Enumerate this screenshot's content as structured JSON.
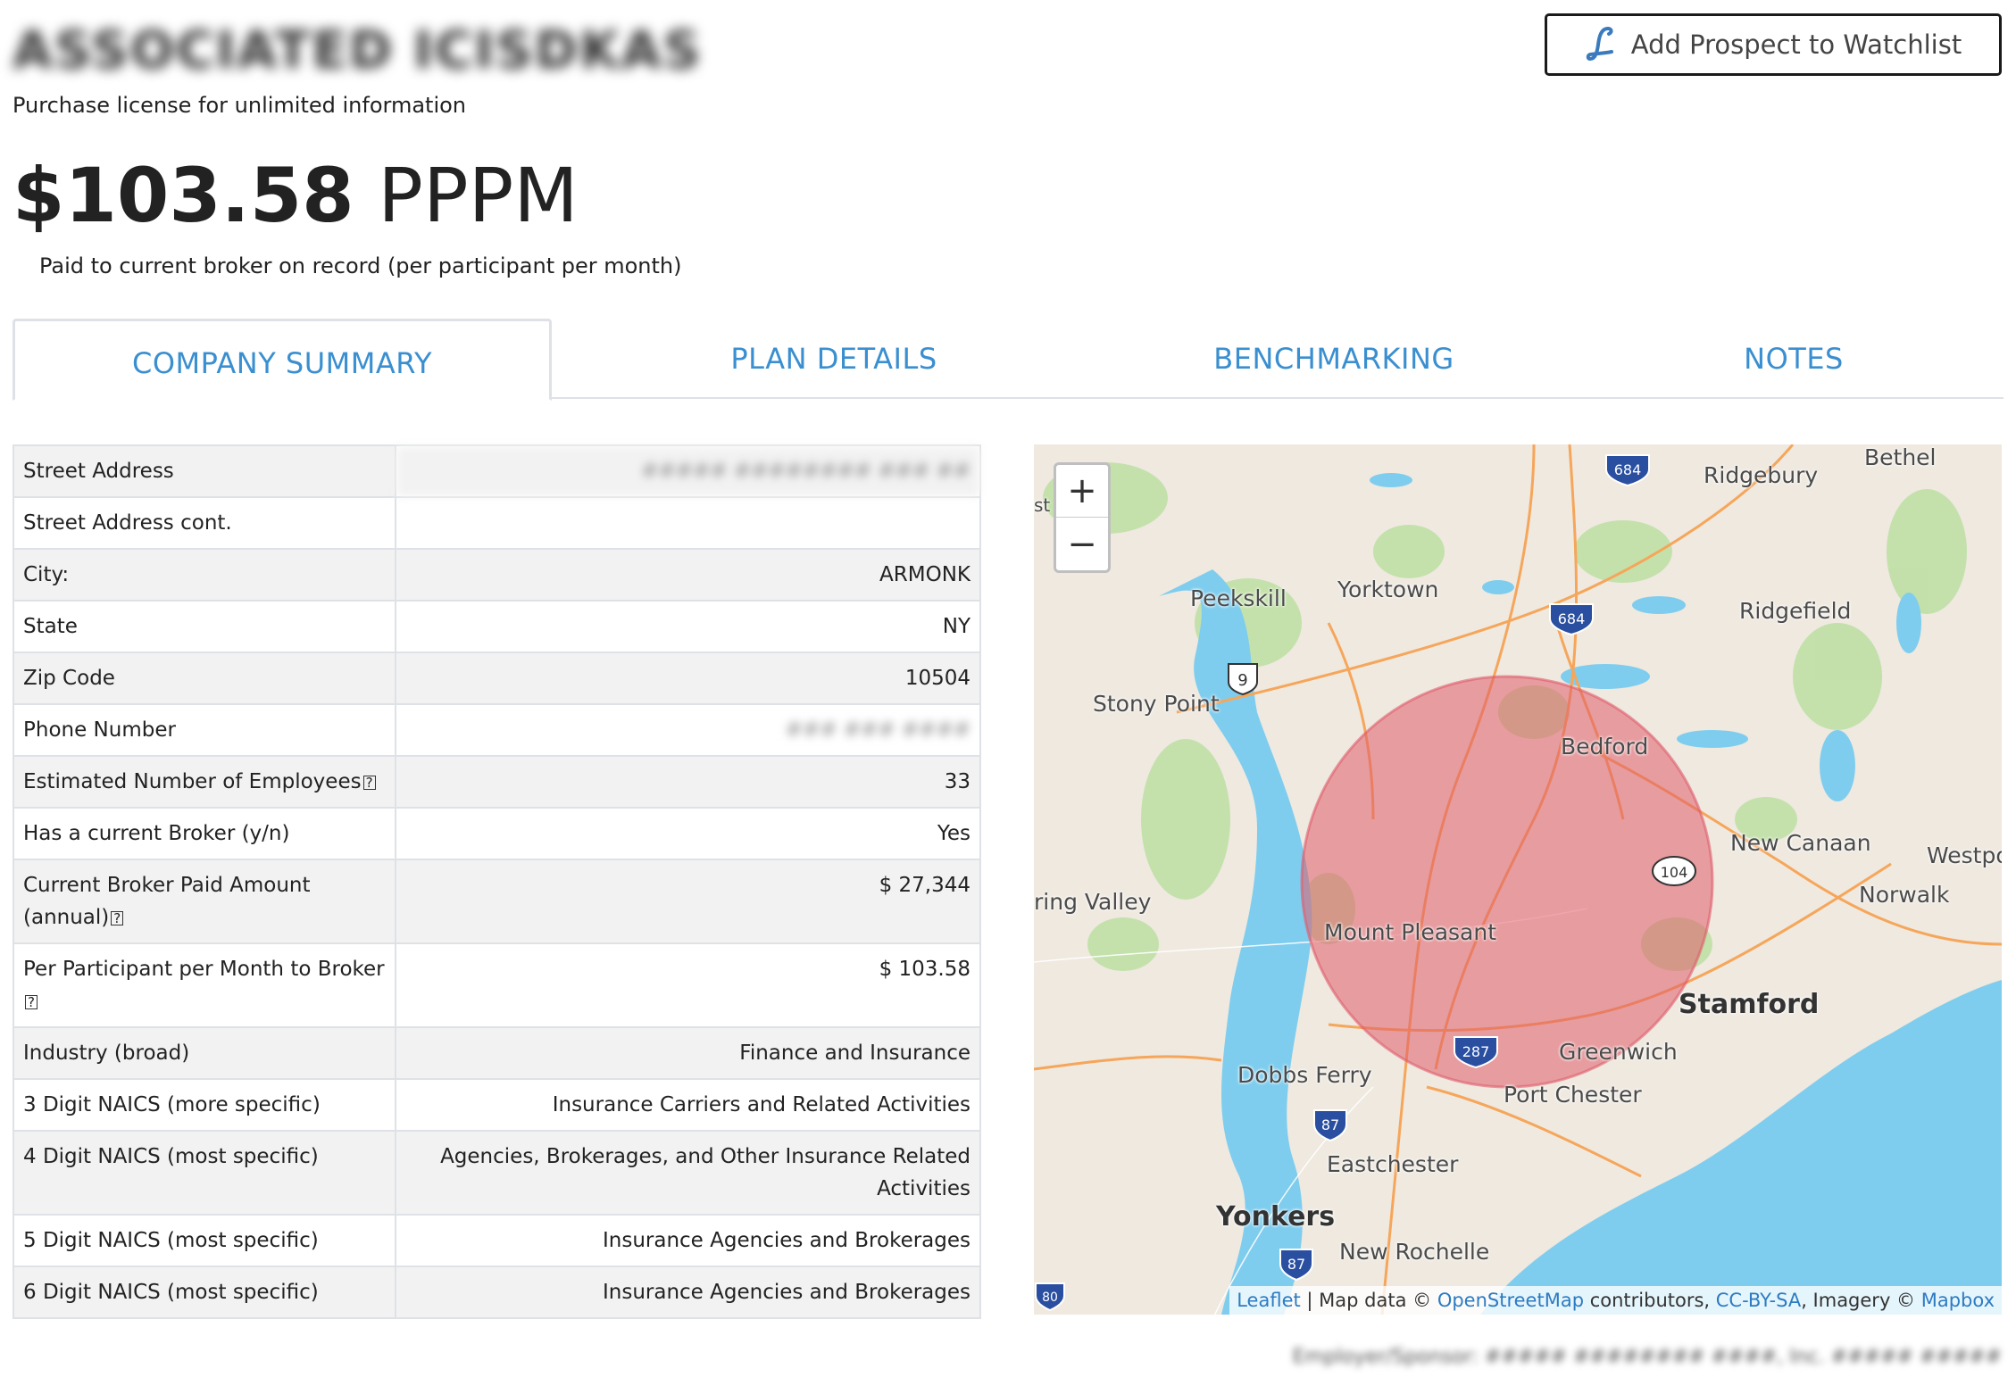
{
  "header": {
    "company_name": "ASSOCIATED ICISDKAS",
    "license_note": "Purchase license for unlimited information",
    "watchlist_button": "Add Prospect to Watchlist",
    "price_amount": "$103.58",
    "price_unit": "PPPM",
    "price_note": "Paid to current broker on record (per participant per month)"
  },
  "tabs": [
    {
      "label": "COMPANY SUMMARY"
    },
    {
      "label": "PLAN DETAILS"
    },
    {
      "label": "BENCHMARKING"
    },
    {
      "label": "NOTES"
    }
  ],
  "summary": {
    "rows": [
      {
        "label": "Street Address",
        "value": "##### ######## ### ##"
      },
      {
        "label": "Street Address cont.",
        "value": ""
      },
      {
        "label": "City:",
        "value": "ARMONK"
      },
      {
        "label": "State",
        "value": "NY"
      },
      {
        "label": "Zip Code",
        "value": "10504"
      },
      {
        "label": "Phone Number",
        "value": "### ### ####"
      },
      {
        "label": "Estimated Number of Employees",
        "value": "33"
      },
      {
        "label": "Has a current Broker (y/n)",
        "value": "Yes"
      },
      {
        "label": "Current Broker Paid Amount (annual)",
        "value": "$ 27,344"
      },
      {
        "label": "Per Participant per Month to Broker",
        "value": "$ 103.58"
      },
      {
        "label": "Industry (broad)",
        "value": "Finance and Insurance"
      },
      {
        "label": "3 Digit NAICS (more specific)",
        "value": "Insurance Carriers and Related Activities"
      },
      {
        "label": "4 Digit NAICS (most specific)",
        "value": "Agencies, Brokerages, and Other Insurance Related Activities"
      },
      {
        "label": "5 Digit NAICS (most specific)",
        "value": "Insurance Agencies and Brokerages"
      },
      {
        "label": "6 Digit NAICS (most specific)",
        "value": "Insurance Agencies and Brokerages"
      }
    ]
  },
  "map": {
    "zoom_in": "+",
    "zoom_out": "−",
    "places": {
      "bethel": "Bethel",
      "ridgebury": "Ridgebury",
      "peekskill": "Peekskill",
      "yorktown": "Yorktown",
      "ridgefield": "Ridgefield",
      "stony_point": "Stony Point",
      "bedford": "Bedford",
      "new_canaan": "New Canaan",
      "westport": "Westpo",
      "norwalk": "Norwalk",
      "ring_valley": "ring Valley",
      "mount_pleasant": "Mount Pleasant",
      "stamford": "Stamford",
      "greenwich": "Greenwich",
      "dobbs_ferry": "Dobbs Ferry",
      "port_chester": "Port Chester",
      "eastchester": "Eastchester",
      "yonkers": "Yonkers",
      "new_rochelle": "New Rochelle",
      "st": "st"
    },
    "shields": {
      "i684a": "684",
      "i684b": "684",
      "us9": "9",
      "r104": "104",
      "i287": "287",
      "i87a": "87",
      "i87b": "87",
      "i80": "80"
    },
    "attribution": {
      "leaflet": "Leaflet",
      "sep": " | Map data © ",
      "osm": "OpenStreetMap",
      "contrib": " contributors, ",
      "license": "CC-BY-SA",
      "imagery": ", Imagery © ",
      "mapbox": "Mapbox"
    },
    "colors": {
      "water": "#7fcdee",
      "land": "#efe9e0",
      "park": "#b8dca0",
      "road": "#f6a65a",
      "radius": "#e05c6a"
    }
  },
  "footer": {
    "note": "Employer/Sponsor: ##### ######## ####, Inc. ##### #####"
  }
}
